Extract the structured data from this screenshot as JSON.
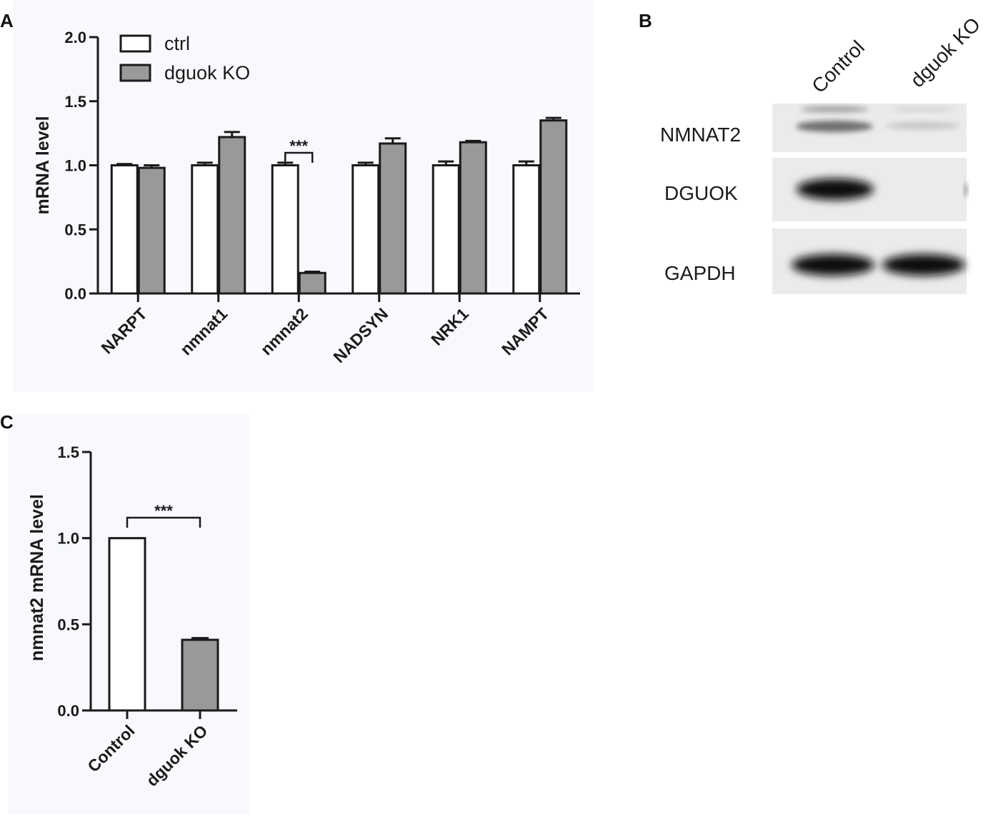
{
  "panels": {
    "a": "A",
    "b": "B",
    "c": "C"
  },
  "colors": {
    "ctrl": "#ffffff",
    "ko": "#999999",
    "edge": "#1a1a1a",
    "panel_bg": "#f7f9fc"
  },
  "chart_data": [
    {
      "id": "A",
      "type": "bar",
      "ylabel": "mRNA level",
      "xlabel": "",
      "ylim": [
        0,
        2.0
      ],
      "yticks": [
        "0.0",
        "0.5",
        "1.0",
        "1.5",
        "2.0"
      ],
      "categories": [
        "NARPT",
        "nmnat1",
        "nmnat2",
        "NADSYN",
        "NRK1",
        "NAMPT"
      ],
      "series": [
        {
          "name": "ctrl",
          "values": [
            1.0,
            1.0,
            1.0,
            1.0,
            1.0,
            1.0
          ],
          "errors": [
            0.01,
            0.02,
            0.02,
            0.02,
            0.03,
            0.03
          ]
        },
        {
          "name": "dguok KO",
          "values": [
            0.98,
            1.22,
            0.16,
            1.17,
            1.18,
            1.35
          ],
          "errors": [
            0.02,
            0.04,
            0.01,
            0.04,
            0.01,
            0.02
          ]
        }
      ],
      "legend": "top-left",
      "annotation": {
        "text": "***",
        "category": "nmnat2"
      }
    },
    {
      "id": "C",
      "type": "bar",
      "ylabel": "nmnat2 mRNA level",
      "xlabel": "",
      "ylim": [
        0,
        1.5
      ],
      "yticks": [
        "0.0",
        "0.5",
        "1.0",
        "1.5"
      ],
      "categories": [
        "Control",
        "dguok KO"
      ],
      "values": [
        1.0,
        0.41
      ],
      "errors": [
        0.0,
        0.01
      ],
      "annotation": {
        "text": "***"
      }
    }
  ],
  "western_blot": {
    "lanes": [
      "Control",
      "dguok KO"
    ],
    "rows": [
      {
        "label": "NMNAT2"
      },
      {
        "label": "DGUOK"
      },
      {
        "label": "GAPDH"
      }
    ]
  }
}
